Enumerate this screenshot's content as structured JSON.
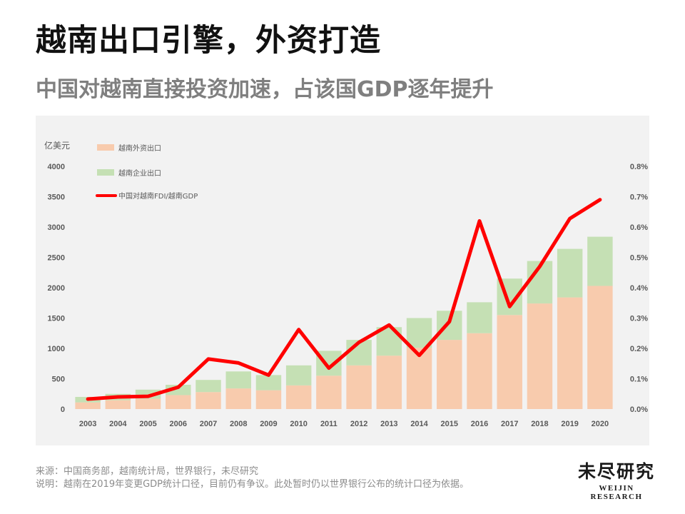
{
  "title": "越南出口引擎，外资打造",
  "subtitle": "中国对越南直接投资加速，占该国GDP逐年提升",
  "footer": {
    "source": "来源：中国商务部，越南统计局，世界银行，未尽研究",
    "note": "说明：越南在2019年变更GDP统计口径，目前仍有争议。此处暂时仍以世界银行公布的统计口径为依据。"
  },
  "logo": {
    "cn": "未尽研究",
    "en": "WEIJIN RESEARCH"
  },
  "colors": {
    "background": "#f2f2f2",
    "foreign_export": "#f8cbad",
    "domestic_export": "#c5e0b4",
    "fdi_line": "#ff0000"
  },
  "chart_data": {
    "type": "bar",
    "stacked": true,
    "title": "",
    "left_axis_unit": "亿美元",
    "categories": [
      "2003",
      "2004",
      "2005",
      "2006",
      "2007",
      "2008",
      "2009",
      "2010",
      "2011",
      "2012",
      "2013",
      "2014",
      "2015",
      "2016",
      "2017",
      "2018",
      "2019",
      "2020"
    ],
    "ylim": [
      0,
      4000
    ],
    "y_ticks": [
      "0",
      "500",
      "1000",
      "1500",
      "2000",
      "2500",
      "3000",
      "3500",
      "4000"
    ],
    "y2lim": [
      0,
      0.008
    ],
    "y2_ticks": [
      "0.0%",
      "0.1%",
      "0.2%",
      "0.3%",
      "0.4%",
      "0.5%",
      "0.6%",
      "0.7%",
      "0.8%"
    ],
    "grid": false,
    "legend_position": "top-left",
    "series": [
      {
        "name": "越南外资出口",
        "type": "bar",
        "axis": "left",
        "values": [
          110,
          145,
          170,
          230,
          280,
          340,
          310,
          390,
          550,
          720,
          880,
          1010,
          1140,
          1250,
          1550,
          1740,
          1840,
          2030
        ]
      },
      {
        "name": "越南企业出口",
        "type": "bar",
        "axis": "left",
        "values": [
          90,
          105,
          150,
          170,
          200,
          280,
          250,
          330,
          410,
          420,
          470,
          490,
          480,
          510,
          600,
          700,
          800,
          810
        ]
      },
      {
        "name": "中国对越南FDI/越南GDP",
        "type": "line",
        "axis": "right",
        "values": [
          0.00033,
          0.0004,
          0.00042,
          0.00072,
          0.00165,
          0.00152,
          0.00112,
          0.00262,
          0.00135,
          0.0022,
          0.00277,
          0.00177,
          0.00288,
          0.0062,
          0.00338,
          0.0047,
          0.00628,
          0.0069
        ]
      }
    ]
  }
}
